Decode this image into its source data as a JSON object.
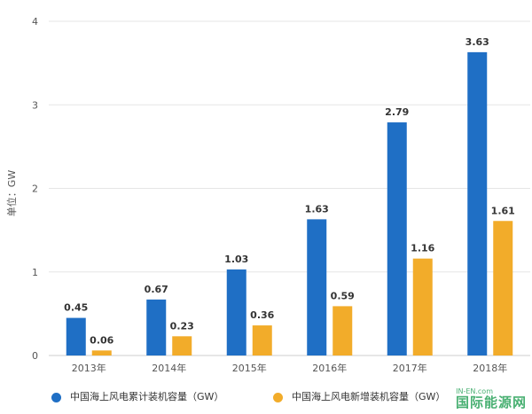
{
  "chart_data": {
    "type": "bar",
    "categories": [
      "2013年",
      "2014年",
      "2015年",
      "2016年",
      "2017年",
      "2018年"
    ],
    "series": [
      {
        "name": "中国海上风电累计装机容量（GW）",
        "values": [
          0.45,
          0.67,
          1.03,
          1.63,
          2.79,
          3.63
        ],
        "color": "#1f6fc5"
      },
      {
        "name": "中国海上风电新增装机容量（GW）",
        "values": [
          0.06,
          0.23,
          0.36,
          0.59,
          1.16,
          1.61
        ],
        "color": "#f2ac2a"
      }
    ],
    "data_labels": [
      [
        "0.45",
        "0.67",
        "1.03",
        "1.63",
        "2.79",
        "3.63"
      ],
      [
        "0.06",
        "0.23",
        "0.36",
        "0.59",
        "1.16",
        "1.61"
      ]
    ],
    "ylabel": "单位：GW",
    "ylim": [
      0,
      4
    ],
    "yticks": [
      "0",
      "1",
      "2",
      "3",
      "4"
    ],
    "grid": true,
    "legend_position": "bottom"
  },
  "watermark": {
    "main": "国际能源网",
    "sub": "IN-EN.com"
  }
}
